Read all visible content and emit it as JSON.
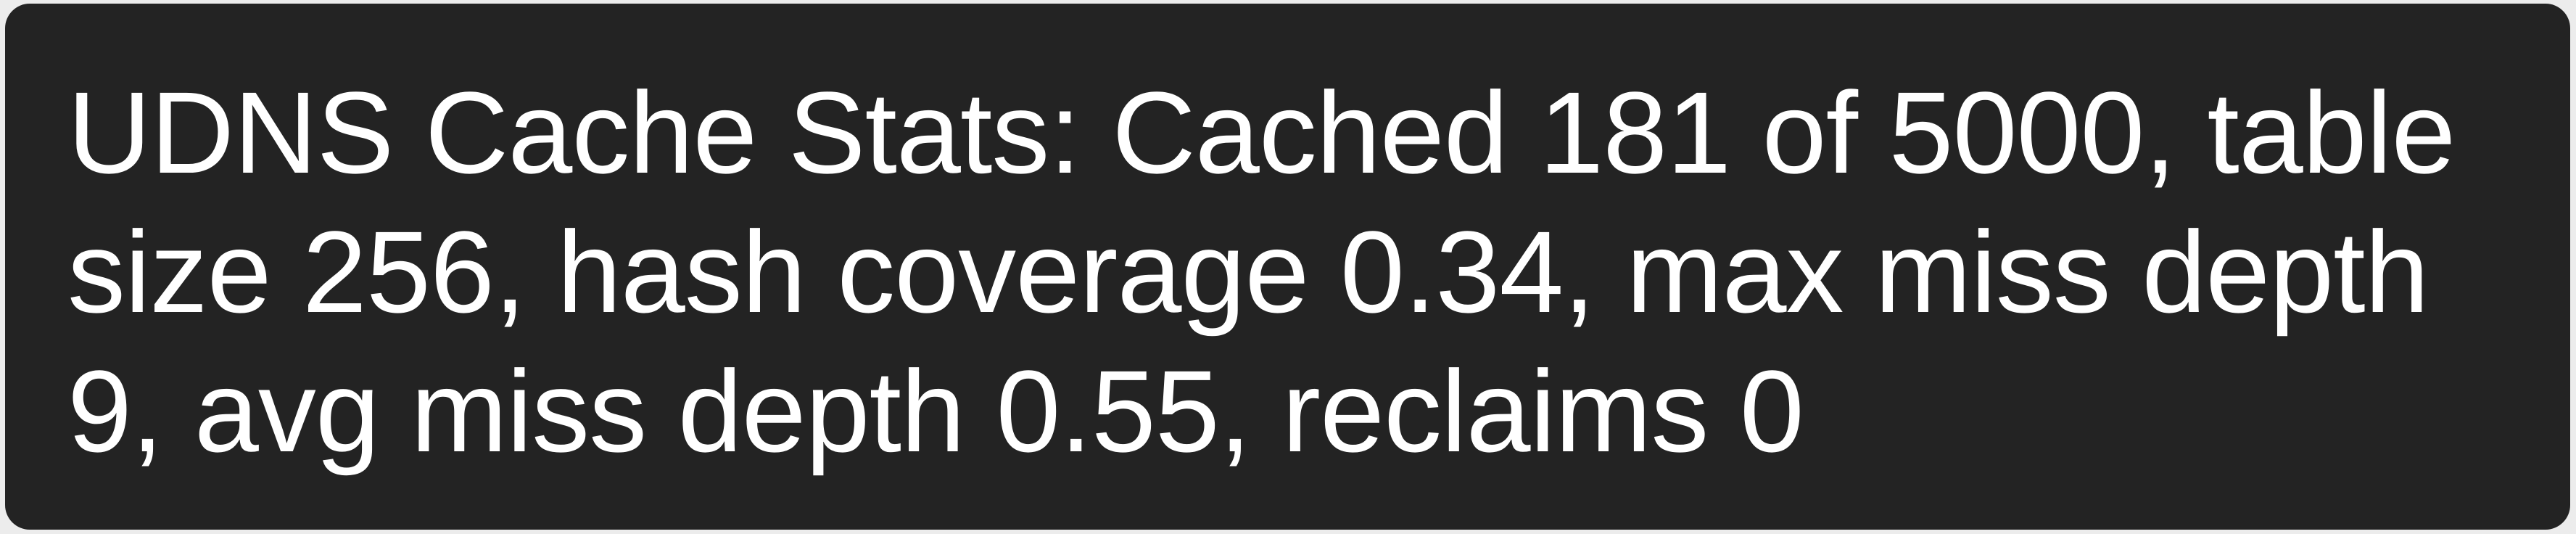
{
  "message": {
    "lines": [
      "UDNS Cache Stats: Cached 181 of 5000, table",
      "size 256, hash coverage 0.34, max miss depth",
      "9, avg miss depth 0.55, reclaims 0"
    ]
  },
  "colors": {
    "panel_background": "#232323",
    "text": "#ffffff",
    "outer_background": "#ececec"
  }
}
